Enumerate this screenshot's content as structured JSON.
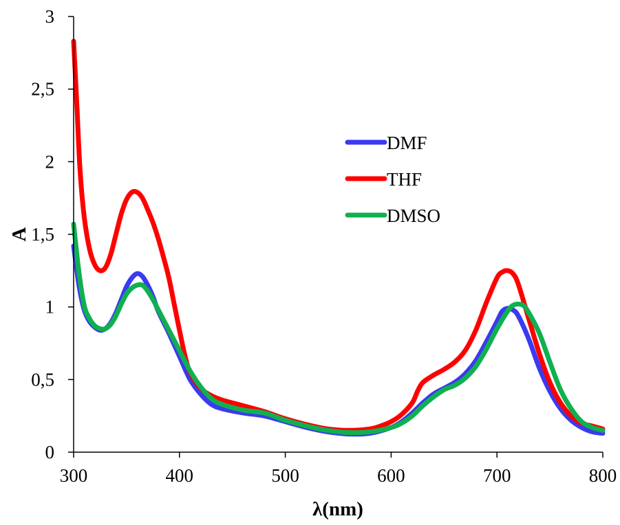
{
  "chart_data": {
    "type": "line",
    "title": "",
    "xlabel": "λ(nm)",
    "ylabel": "A",
    "xlim": [
      300,
      800
    ],
    "ylim": [
      0,
      3
    ],
    "xticks": [
      300,
      400,
      500,
      600,
      700,
      800
    ],
    "yticks": [
      0,
      0.5,
      1,
      1.5,
      2,
      2.5,
      3
    ],
    "xtick_labels": [
      "300",
      "400",
      "500",
      "600",
      "700",
      "800"
    ],
    "ytick_labels": [
      "0",
      "0,5",
      "1",
      "1,5",
      "2",
      "2,5",
      "3"
    ],
    "grid": false,
    "legend_position": "center-right",
    "series": [
      {
        "name": "DMF",
        "color": "#3a3af0",
        "points": [
          [
            300,
            1.42
          ],
          [
            305,
            1.15
          ],
          [
            310,
            0.98
          ],
          [
            315,
            0.9
          ],
          [
            320,
            0.86
          ],
          [
            325,
            0.84
          ],
          [
            330,
            0.85
          ],
          [
            335,
            0.89
          ],
          [
            340,
            0.96
          ],
          [
            345,
            1.05
          ],
          [
            350,
            1.14
          ],
          [
            355,
            1.2
          ],
          [
            360,
            1.23
          ],
          [
            365,
            1.21
          ],
          [
            370,
            1.15
          ],
          [
            375,
            1.07
          ],
          [
            380,
            0.97
          ],
          [
            390,
            0.82
          ],
          [
            400,
            0.66
          ],
          [
            410,
            0.5
          ],
          [
            420,
            0.4
          ],
          [
            430,
            0.33
          ],
          [
            440,
            0.3
          ],
          [
            460,
            0.27
          ],
          [
            480,
            0.25
          ],
          [
            500,
            0.21
          ],
          [
            520,
            0.17
          ],
          [
            540,
            0.14
          ],
          [
            560,
            0.125
          ],
          [
            580,
            0.13
          ],
          [
            600,
            0.17
          ],
          [
            610,
            0.21
          ],
          [
            620,
            0.27
          ],
          [
            630,
            0.34
          ],
          [
            640,
            0.4
          ],
          [
            650,
            0.44
          ],
          [
            660,
            0.48
          ],
          [
            670,
            0.54
          ],
          [
            680,
            0.63
          ],
          [
            690,
            0.76
          ],
          [
            700,
            0.9
          ],
          [
            705,
            0.97
          ],
          [
            710,
            0.99
          ],
          [
            715,
            0.98
          ],
          [
            720,
            0.94
          ],
          [
            730,
            0.78
          ],
          [
            740,
            0.58
          ],
          [
            750,
            0.42
          ],
          [
            760,
            0.3
          ],
          [
            770,
            0.22
          ],
          [
            780,
            0.17
          ],
          [
            790,
            0.14
          ],
          [
            800,
            0.13
          ]
        ]
      },
      {
        "name": "THF",
        "color": "#ff0000",
        "points": [
          [
            300,
            2.83
          ],
          [
            303,
            2.4
          ],
          [
            306,
            1.95
          ],
          [
            310,
            1.62
          ],
          [
            315,
            1.4
          ],
          [
            320,
            1.29
          ],
          [
            325,
            1.25
          ],
          [
            330,
            1.27
          ],
          [
            335,
            1.36
          ],
          [
            340,
            1.5
          ],
          [
            345,
            1.64
          ],
          [
            350,
            1.74
          ],
          [
            355,
            1.79
          ],
          [
            360,
            1.79
          ],
          [
            365,
            1.75
          ],
          [
            370,
            1.67
          ],
          [
            375,
            1.58
          ],
          [
            380,
            1.47
          ],
          [
            385,
            1.34
          ],
          [
            390,
            1.2
          ],
          [
            395,
            1.02
          ],
          [
            400,
            0.84
          ],
          [
            405,
            0.67
          ],
          [
            410,
            0.55
          ],
          [
            420,
            0.44
          ],
          [
            430,
            0.39
          ],
          [
            440,
            0.36
          ],
          [
            460,
            0.32
          ],
          [
            480,
            0.28
          ],
          [
            500,
            0.23
          ],
          [
            520,
            0.19
          ],
          [
            540,
            0.16
          ],
          [
            560,
            0.15
          ],
          [
            580,
            0.16
          ],
          [
            590,
            0.18
          ],
          [
            600,
            0.21
          ],
          [
            610,
            0.26
          ],
          [
            620,
            0.34
          ],
          [
            625,
            0.42
          ],
          [
            630,
            0.48
          ],
          [
            640,
            0.53
          ],
          [
            650,
            0.57
          ],
          [
            660,
            0.62
          ],
          [
            670,
            0.7
          ],
          [
            680,
            0.84
          ],
          [
            690,
            1.03
          ],
          [
            700,
            1.2
          ],
          [
            705,
            1.24
          ],
          [
            710,
            1.25
          ],
          [
            715,
            1.23
          ],
          [
            720,
            1.16
          ],
          [
            730,
            0.92
          ],
          [
            740,
            0.68
          ],
          [
            750,
            0.48
          ],
          [
            760,
            0.34
          ],
          [
            770,
            0.25
          ],
          [
            780,
            0.2
          ],
          [
            790,
            0.18
          ],
          [
            800,
            0.16
          ]
        ]
      },
      {
        "name": "DMSO",
        "color": "#10b050",
        "points": [
          [
            300,
            1.57
          ],
          [
            305,
            1.24
          ],
          [
            310,
            1.01
          ],
          [
            315,
            0.92
          ],
          [
            320,
            0.87
          ],
          [
            325,
            0.85
          ],
          [
            330,
            0.85
          ],
          [
            335,
            0.88
          ],
          [
            340,
            0.94
          ],
          [
            345,
            1.02
          ],
          [
            350,
            1.09
          ],
          [
            355,
            1.13
          ],
          [
            360,
            1.15
          ],
          [
            365,
            1.15
          ],
          [
            370,
            1.11
          ],
          [
            375,
            1.05
          ],
          [
            380,
            0.98
          ],
          [
            390,
            0.84
          ],
          [
            400,
            0.7
          ],
          [
            410,
            0.56
          ],
          [
            420,
            0.45
          ],
          [
            430,
            0.37
          ],
          [
            440,
            0.33
          ],
          [
            460,
            0.29
          ],
          [
            480,
            0.27
          ],
          [
            500,
            0.22
          ],
          [
            520,
            0.18
          ],
          [
            540,
            0.15
          ],
          [
            560,
            0.135
          ],
          [
            580,
            0.14
          ],
          [
            600,
            0.17
          ],
          [
            610,
            0.2
          ],
          [
            620,
            0.25
          ],
          [
            630,
            0.32
          ],
          [
            640,
            0.38
          ],
          [
            650,
            0.43
          ],
          [
            660,
            0.46
          ],
          [
            670,
            0.51
          ],
          [
            680,
            0.59
          ],
          [
            690,
            0.71
          ],
          [
            700,
            0.85
          ],
          [
            710,
            0.97
          ],
          [
            715,
            1.01
          ],
          [
            720,
            1.02
          ],
          [
            725,
            1.01
          ],
          [
            730,
            0.96
          ],
          [
            740,
            0.82
          ],
          [
            750,
            0.62
          ],
          [
            760,
            0.43
          ],
          [
            770,
            0.3
          ],
          [
            780,
            0.21
          ],
          [
            790,
            0.17
          ],
          [
            800,
            0.15
          ]
        ]
      }
    ]
  }
}
